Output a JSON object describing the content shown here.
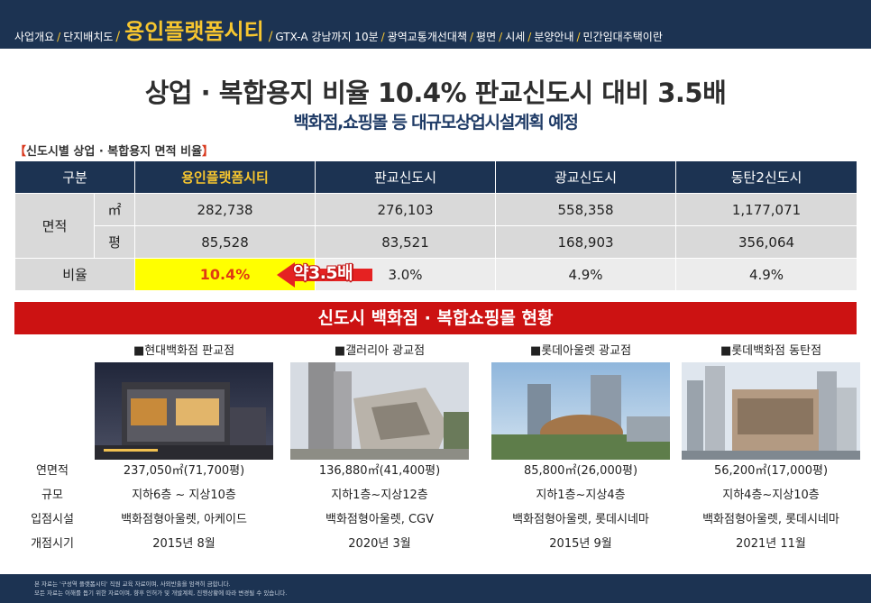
{
  "nav": {
    "items": [
      {
        "label": "사업개요",
        "active": false
      },
      {
        "label": "단지배치도",
        "active": false
      },
      {
        "label": "용인플랫폼시티",
        "active": true
      },
      {
        "label": "GTX-A 강남까지 10분",
        "active": false
      },
      {
        "label": "광역교통개선대책",
        "active": false
      },
      {
        "label": "평면",
        "active": false
      },
      {
        "label": "시세",
        "active": false
      },
      {
        "label": "분양안내",
        "active": false
      },
      {
        "label": "민간임대주택이란",
        "active": false
      }
    ],
    "separator": "/"
  },
  "headline": "상업 · 복합용지 비율 10.4% 판교신도시 대비 3.5배",
  "subheadline": "백화점,쇼핑몰 등 대규모상업시설계획 예정",
  "table_caption": {
    "open": "【",
    "text": "신도시별 상업 · 복합용지 면적 비율",
    "close": "】"
  },
  "area_table": {
    "headers": [
      "구분",
      "용인플랫폼시티",
      "판교신도시",
      "광교신도시",
      "동탄2신도시"
    ],
    "area_label": "면적",
    "rows": [
      {
        "unit": "㎡",
        "values": [
          "282,738",
          "276,103",
          "558,358",
          "1,177,071"
        ]
      },
      {
        "unit": "평",
        "values": [
          "85,528",
          "83,521",
          "168,903",
          "356,064"
        ]
      }
    ],
    "ratio": {
      "label": "비율",
      "values": [
        "10.4%",
        "3.0%",
        "4.9%",
        "4.9%"
      ]
    }
  },
  "callout": {
    "text": "약3.5배",
    "color": "#e52222"
  },
  "banner": "신도시 백화점 · 복합쇼핑몰 현황",
  "store_row_labels": [
    "연면적",
    "규모",
    "입점시설",
    "개점시기"
  ],
  "stores": [
    {
      "title": "■현대백화점 판교점",
      "area": "237,050㎡(71,700평)",
      "scale": "지하6층 ~ 지상10층",
      "facilities": "백화점형아울렛, 아케이드",
      "opened": "2015년 8월"
    },
    {
      "title": "■갤러리아 광교점",
      "area": "136,880㎡(41,400평)",
      "scale": "지하1층~지상12층",
      "facilities": "백화점형아울렛, CGV",
      "opened": "2020년 3월"
    },
    {
      "title": "■롯데아울렛 광교점",
      "area": "85,800㎡(26,000평)",
      "scale": "지하1층~지상4층",
      "facilities": "백화점형아울렛, 롯데시네마",
      "opened": "2015년 9월"
    },
    {
      "title": "■롯데백화점 동탄점",
      "area": "56,200㎡(17,000평)",
      "scale": "지하4층~지상10층",
      "facilities": "백화점형아울렛, 롯데시네마",
      "opened": "2021년 11월"
    }
  ],
  "footer": [
    "본 자료는 '구성역 플랫폼시티' 직원 교육 자료이며, 사외반출을 엄격히 금합니다.",
    "모든 자료는 이해를 돕기 위한 자료이며, 향후 인허가 및 개발계획, 진행상황에 따라 변경될 수 있습니다."
  ],
  "colors": {
    "navy": "#1c3352",
    "accent_yellow": "#f7c62f",
    "banner_red": "#cc1212",
    "highlight_yellow": "#ffff00"
  }
}
